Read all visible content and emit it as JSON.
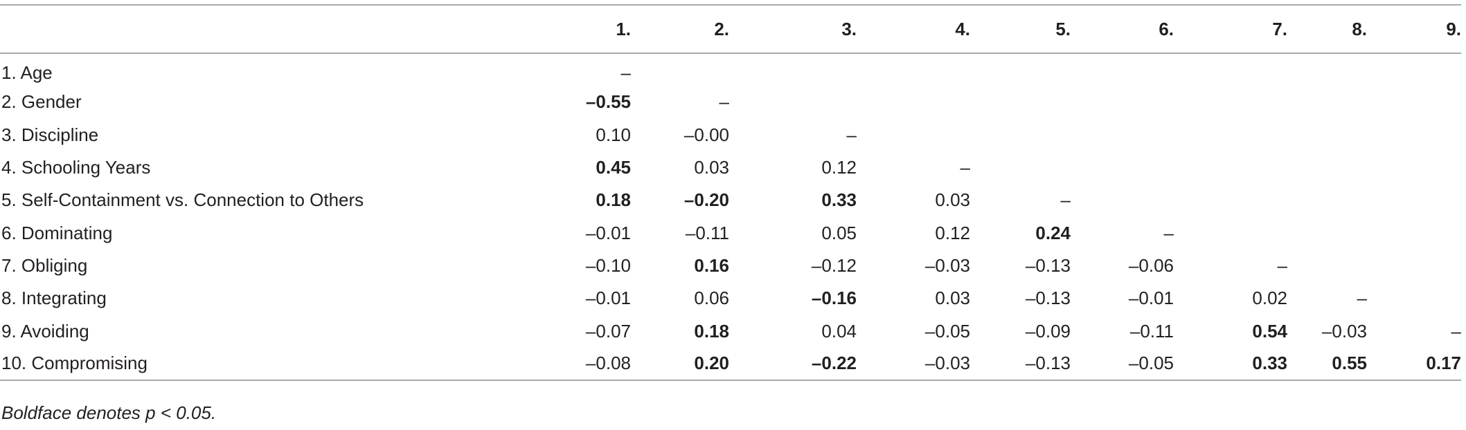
{
  "table": {
    "headers": [
      "",
      "1.",
      "2.",
      "3.",
      "4.",
      "5.",
      "6.",
      "7.",
      "8.",
      "9."
    ],
    "rows": [
      {
        "label": "1. Age",
        "cells": [
          {
            "v": "–",
            "b": false
          },
          {
            "v": "",
            "b": false
          },
          {
            "v": "",
            "b": false
          },
          {
            "v": "",
            "b": false
          },
          {
            "v": "",
            "b": false
          },
          {
            "v": "",
            "b": false
          },
          {
            "v": "",
            "b": false
          },
          {
            "v": "",
            "b": false
          },
          {
            "v": "",
            "b": false
          }
        ]
      },
      {
        "label": "2. Gender",
        "cells": [
          {
            "v": "–0.55",
            "b": true
          },
          {
            "v": "–",
            "b": false
          },
          {
            "v": "",
            "b": false
          },
          {
            "v": "",
            "b": false
          },
          {
            "v": "",
            "b": false
          },
          {
            "v": "",
            "b": false
          },
          {
            "v": "",
            "b": false
          },
          {
            "v": "",
            "b": false
          },
          {
            "v": "",
            "b": false
          }
        ]
      },
      {
        "label": "3. Discipline",
        "cells": [
          {
            "v": "0.10",
            "b": false
          },
          {
            "v": "–0.00",
            "b": false
          },
          {
            "v": "–",
            "b": false
          },
          {
            "v": "",
            "b": false
          },
          {
            "v": "",
            "b": false
          },
          {
            "v": "",
            "b": false
          },
          {
            "v": "",
            "b": false
          },
          {
            "v": "",
            "b": false
          },
          {
            "v": "",
            "b": false
          }
        ]
      },
      {
        "label": "4. Schooling Years",
        "cells": [
          {
            "v": "0.45",
            "b": true
          },
          {
            "v": "0.03",
            "b": false
          },
          {
            "v": "0.12",
            "b": false
          },
          {
            "v": "–",
            "b": false
          },
          {
            "v": "",
            "b": false
          },
          {
            "v": "",
            "b": false
          },
          {
            "v": "",
            "b": false
          },
          {
            "v": "",
            "b": false
          },
          {
            "v": "",
            "b": false
          }
        ]
      },
      {
        "label": "5. Self-Containment vs. Connection to Others",
        "cells": [
          {
            "v": "0.18",
            "b": true
          },
          {
            "v": "–0.20",
            "b": true
          },
          {
            "v": "0.33",
            "b": true
          },
          {
            "v": "0.03",
            "b": false
          },
          {
            "v": "–",
            "b": false
          },
          {
            "v": "",
            "b": false
          },
          {
            "v": "",
            "b": false
          },
          {
            "v": "",
            "b": false
          },
          {
            "v": "",
            "b": false
          }
        ]
      },
      {
        "label": "6. Dominating",
        "cells": [
          {
            "v": "–0.01",
            "b": false
          },
          {
            "v": "–0.11",
            "b": false
          },
          {
            "v": "0.05",
            "b": false
          },
          {
            "v": "0.12",
            "b": false
          },
          {
            "v": "0.24",
            "b": true
          },
          {
            "v": "–",
            "b": false
          },
          {
            "v": "",
            "b": false
          },
          {
            "v": "",
            "b": false
          },
          {
            "v": "",
            "b": false
          }
        ]
      },
      {
        "label": "7. Obliging",
        "cells": [
          {
            "v": "–0.10",
            "b": false
          },
          {
            "v": "0.16",
            "b": true
          },
          {
            "v": "–0.12",
            "b": false
          },
          {
            "v": "–0.03",
            "b": false
          },
          {
            "v": "–0.13",
            "b": false
          },
          {
            "v": "–0.06",
            "b": false
          },
          {
            "v": "–",
            "b": false
          },
          {
            "v": "",
            "b": false
          },
          {
            "v": "",
            "b": false
          }
        ]
      },
      {
        "label": "8. Integrating",
        "cells": [
          {
            "v": "–0.01",
            "b": false
          },
          {
            "v": "0.06",
            "b": false
          },
          {
            "v": "–0.16",
            "b": true
          },
          {
            "v": "0.03",
            "b": false
          },
          {
            "v": "–0.13",
            "b": false
          },
          {
            "v": "–0.01",
            "b": false
          },
          {
            "v": "0.02",
            "b": false
          },
          {
            "v": "–",
            "b": false
          },
          {
            "v": "",
            "b": false
          }
        ]
      },
      {
        "label": "9. Avoiding",
        "cells": [
          {
            "v": "–0.07",
            "b": false
          },
          {
            "v": "0.18",
            "b": true
          },
          {
            "v": "0.04",
            "b": false
          },
          {
            "v": "–0.05",
            "b": false
          },
          {
            "v": "–0.09",
            "b": false
          },
          {
            "v": "–0.11",
            "b": false
          },
          {
            "v": "0.54",
            "b": true
          },
          {
            "v": "–0.03",
            "b": false
          },
          {
            "v": "–",
            "b": false
          }
        ]
      },
      {
        "label": "10. Compromising",
        "cells": [
          {
            "v": "–0.08",
            "b": false
          },
          {
            "v": "0.20",
            "b": true
          },
          {
            "v": "–0.22",
            "b": true
          },
          {
            "v": "–0.03",
            "b": false
          },
          {
            "v": "–0.13",
            "b": false
          },
          {
            "v": "–0.05",
            "b": false
          },
          {
            "v": "0.33",
            "b": true
          },
          {
            "v": "0.55",
            "b": true
          },
          {
            "v": "0.17",
            "b": true
          }
        ]
      }
    ]
  },
  "footnote": "Boldface denotes p < 0.05."
}
